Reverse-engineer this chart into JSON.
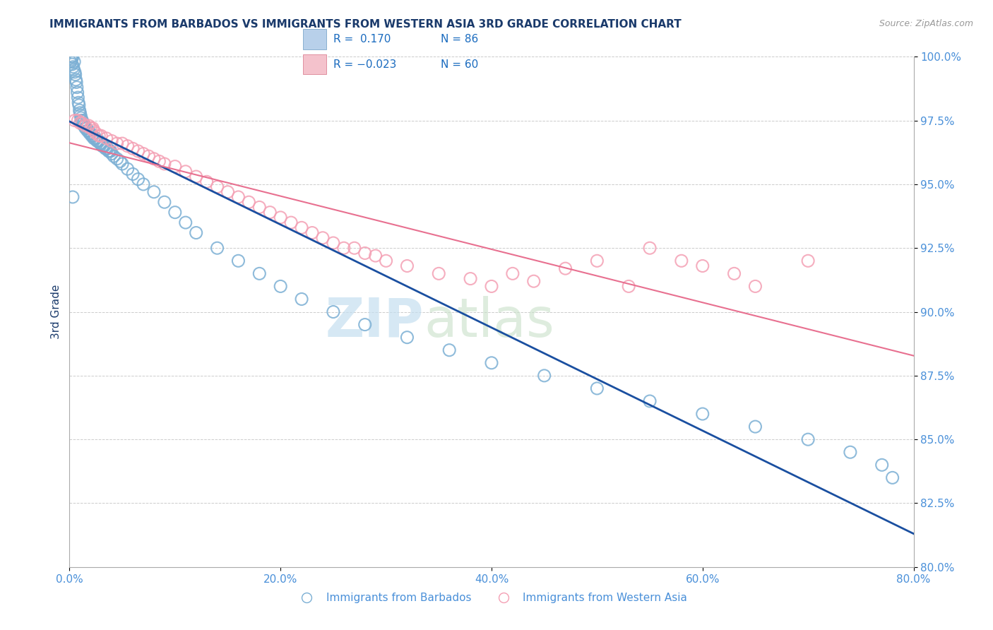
{
  "title": "IMMIGRANTS FROM BARBADOS VS IMMIGRANTS FROM WESTERN ASIA 3RD GRADE CORRELATION CHART",
  "source": "Source: ZipAtlas.com",
  "ylabel": "3rd Grade",
  "x_min": 0.0,
  "x_max": 80.0,
  "y_min": 80.0,
  "y_max": 100.0,
  "x_ticks": [
    0.0,
    20.0,
    40.0,
    60.0,
    80.0
  ],
  "y_ticks": [
    80.0,
    82.5,
    85.0,
    87.5,
    90.0,
    92.5,
    95.0,
    97.5,
    100.0
  ],
  "blue_R": 0.17,
  "blue_N": 86,
  "pink_R": -0.023,
  "pink_N": 60,
  "blue_color": "#7bafd4",
  "pink_color": "#f4a0b4",
  "blue_line_color": "#1a4fa0",
  "pink_line_color": "#e87090",
  "legend_label_blue": "Immigrants from Barbados",
  "legend_label_pink": "Immigrants from Western Asia",
  "title_color": "#1a3a6b",
  "tick_color": "#4a90d9",
  "legend_R_color": "#1a6bbf",
  "blue_leg_fill": "#b8d0ea",
  "pink_leg_fill": "#f4c2cc",
  "blue_scatter_x": [
    0.1,
    0.15,
    0.2,
    0.25,
    0.3,
    0.35,
    0.4,
    0.45,
    0.5,
    0.55,
    0.6,
    0.65,
    0.7,
    0.75,
    0.8,
    0.85,
    0.9,
    0.95,
    1.0,
    1.05,
    1.1,
    1.15,
    1.2,
    1.25,
    1.3,
    1.35,
    1.4,
    1.5,
    1.6,
    1.7,
    1.8,
    1.9,
    2.0,
    2.1,
    2.2,
    2.3,
    2.4,
    2.5,
    2.6,
    2.7,
    2.8,
    2.9,
    3.0,
    3.1,
    3.2,
    3.3,
    3.4,
    3.5,
    3.6,
    3.7,
    3.8,
    3.9,
    4.0,
    4.2,
    4.5,
    4.8,
    5.0,
    5.5,
    6.0,
    6.5,
    7.0,
    8.0,
    9.0,
    10.0,
    11.0,
    12.0,
    14.0,
    16.0,
    18.0,
    20.0,
    22.0,
    25.0,
    28.0,
    32.0,
    36.0,
    40.0,
    45.0,
    50.0,
    55.0,
    60.0,
    65.0,
    70.0,
    74.0,
    77.0,
    78.0,
    0.3
  ],
  "blue_scatter_y": [
    99.8,
    100.0,
    99.9,
    99.7,
    100.0,
    99.6,
    99.5,
    99.8,
    99.4,
    99.3,
    99.1,
    99.0,
    98.8,
    98.6,
    98.4,
    98.2,
    98.1,
    97.9,
    97.8,
    97.7,
    97.6,
    97.5,
    97.5,
    97.4,
    97.4,
    97.3,
    97.3,
    97.2,
    97.2,
    97.1,
    97.1,
    97.0,
    97.0,
    96.9,
    96.9,
    96.8,
    96.8,
    96.8,
    96.7,
    96.7,
    96.7,
    96.6,
    96.6,
    96.5,
    96.5,
    96.5,
    96.4,
    96.4,
    96.4,
    96.3,
    96.3,
    96.3,
    96.2,
    96.1,
    96.0,
    95.9,
    95.8,
    95.6,
    95.4,
    95.2,
    95.0,
    94.7,
    94.3,
    93.9,
    93.5,
    93.1,
    92.5,
    92.0,
    91.5,
    91.0,
    90.5,
    90.0,
    89.5,
    89.0,
    88.5,
    88.0,
    87.5,
    87.0,
    86.5,
    86.0,
    85.5,
    85.0,
    84.5,
    84.0,
    83.5,
    94.5
  ],
  "pink_scatter_x": [
    0.5,
    0.8,
    1.0,
    1.2,
    1.5,
    1.8,
    2.0,
    2.3,
    2.5,
    2.8,
    3.0,
    3.5,
    4.0,
    4.5,
    5.0,
    5.5,
    6.0,
    6.5,
    7.0,
    7.5,
    8.0,
    8.5,
    9.0,
    10.0,
    11.0,
    12.0,
    13.0,
    14.0,
    15.0,
    16.0,
    17.0,
    18.0,
    19.0,
    20.0,
    21.0,
    22.0,
    23.0,
    24.0,
    25.0,
    26.0,
    27.0,
    28.0,
    29.0,
    30.0,
    32.0,
    35.0,
    38.0,
    40.0,
    42.0,
    44.0,
    47.0,
    50.0,
    53.0,
    55.0,
    58.0,
    60.0,
    63.0,
    65.0,
    70.0,
    2.2
  ],
  "pink_scatter_y": [
    97.5,
    97.5,
    97.4,
    97.4,
    97.3,
    97.3,
    97.2,
    97.1,
    97.0,
    96.9,
    96.9,
    96.8,
    96.7,
    96.6,
    96.6,
    96.5,
    96.4,
    96.3,
    96.2,
    96.1,
    96.0,
    95.9,
    95.8,
    95.7,
    95.5,
    95.3,
    95.1,
    94.9,
    94.7,
    94.5,
    94.3,
    94.1,
    93.9,
    93.7,
    93.5,
    93.3,
    93.1,
    92.9,
    92.7,
    92.5,
    92.5,
    92.3,
    92.2,
    92.0,
    91.8,
    91.5,
    91.3,
    91.0,
    91.5,
    91.2,
    91.7,
    92.0,
    91.0,
    92.5,
    92.0,
    91.8,
    91.5,
    91.0,
    92.0,
    97.2
  ]
}
